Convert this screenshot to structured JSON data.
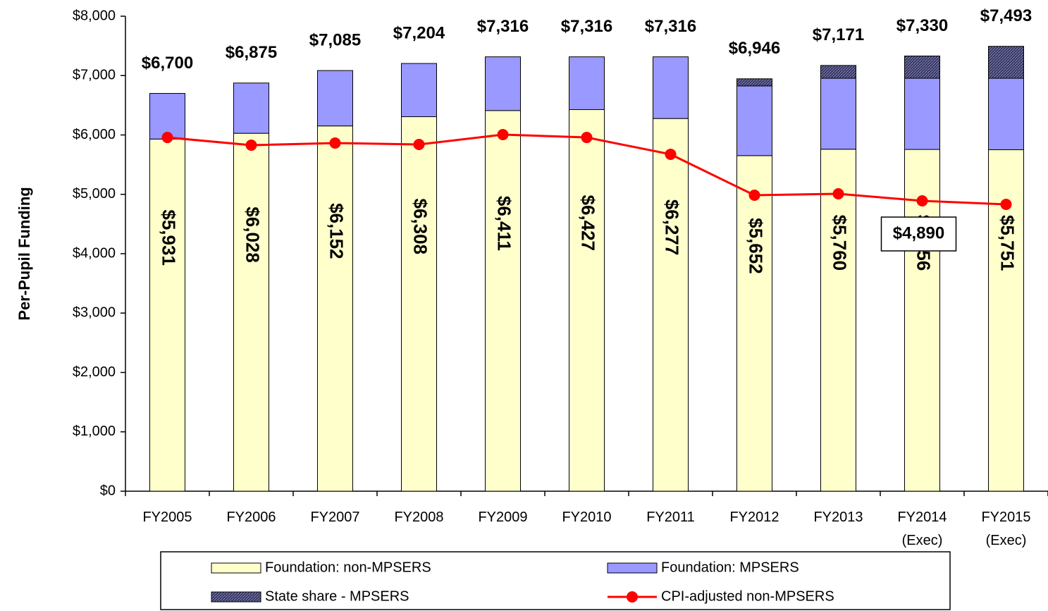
{
  "chart_data": {
    "type": "stacked-bar-line",
    "y_label": "Per-Pupil Funding",
    "categories": [
      "FY2005",
      "FY2006",
      "FY2007",
      "FY2008",
      "FY2009",
      "FY2010",
      "FY2011",
      "FY2012",
      "FY2013",
      "FY2014\n(Exec)",
      "FY2015\n(Exec)"
    ],
    "series": [
      {
        "name": "Foundation: non-MPSERS",
        "color": "#FFFFCC",
        "type": "bar",
        "values": [
          5931,
          6028,
          6152,
          6308,
          6411,
          6427,
          6277,
          5652,
          5760,
          5756,
          5751
        ],
        "value_labels": [
          "$5,931",
          "$6,028",
          "$6,152",
          "$6,308",
          "$6,411",
          "$6,427",
          "$6,277",
          "$5,652",
          "$5,760",
          "$5,756",
          "$5,751"
        ]
      },
      {
        "name": "Foundation:  MPSERS",
        "color": "#9999FF",
        "type": "bar",
        "values": [
          769,
          847,
          933,
          896,
          905,
          889,
          1039,
          1174,
          1195,
          1199,
          1204
        ]
      },
      {
        "name": "State share - MPSERS",
        "color": "#333366",
        "type": "bar",
        "hatch": true,
        "values": [
          0,
          0,
          0,
          0,
          0,
          0,
          0,
          120,
          216,
          375,
          538
        ]
      },
      {
        "name": "CPI-adjusted non-MPSERS",
        "color": "#FF0000",
        "type": "line",
        "values": [
          5958,
          5828,
          5864,
          5840,
          6006,
          5958,
          5674,
          4985,
          5009,
          4890,
          4831
        ],
        "value_labels": [
          null,
          null,
          null,
          null,
          null,
          null,
          null,
          null,
          null,
          "$4,890",
          null
        ]
      }
    ],
    "total_labels": [
      "$6,700",
      "$6,875",
      "$7,085",
      "$7,204",
      "$7,316",
      "$7,316",
      "$7,316",
      "$6,946",
      "$7,171",
      "$7,330",
      "$7,493"
    ],
    "ylim": [
      0,
      8000
    ],
    "yticks": [
      {
        "value": 0,
        "label": "$0"
      },
      {
        "value": 1000,
        "label": "$1,000"
      },
      {
        "value": 2000,
        "label": "$2,000"
      },
      {
        "value": 3000,
        "label": "$3,000"
      },
      {
        "value": 4000,
        "label": "$4,000"
      },
      {
        "value": 5000,
        "label": "$5,000"
      },
      {
        "value": 6000,
        "label": "$6,000"
      },
      {
        "value": 7000,
        "label": "$7,000"
      },
      {
        "value": 8000,
        "label": "$8,000"
      }
    ],
    "legend": "bottom"
  }
}
